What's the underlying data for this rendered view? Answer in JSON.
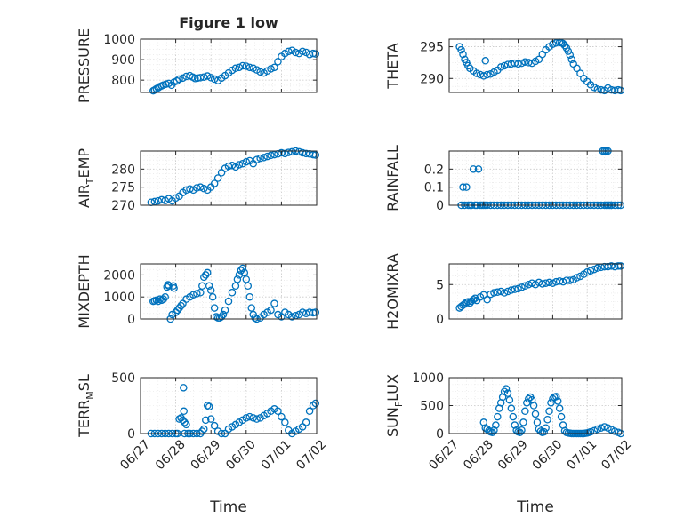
{
  "figure": {
    "title": "Figure 1 low",
    "xlabel": "Time"
  },
  "chart_data": [
    {
      "type": "scatter",
      "title": "Figure 1 low",
      "ylabel": "PRESSURE",
      "xlim": [
        0,
        5
      ],
      "ylim": [
        740,
        1000
      ],
      "yticks": [
        800,
        900,
        1000
      ],
      "xticks": [],
      "show_xlabel": false,
      "color": "#0072BD",
      "x": [
        0.36,
        0.4,
        0.45,
        0.5,
        0.55,
        0.6,
        0.65,
        0.72,
        0.8,
        0.88,
        0.95,
        1.03,
        1.1,
        1.2,
        1.3,
        1.4,
        1.48,
        1.55,
        1.62,
        1.7,
        1.8,
        1.9,
        2.0,
        2.1,
        2.2,
        2.3,
        2.4,
        2.5,
        2.6,
        2.7,
        2.8,
        2.9,
        3.0,
        3.1,
        3.2,
        3.3,
        3.4,
        3.5,
        3.6,
        3.7,
        3.8,
        3.9,
        4.0,
        4.1,
        4.2,
        4.3,
        4.4,
        4.5,
        4.6,
        4.7,
        4.8,
        4.9,
        4.97
      ],
      "y": [
        748,
        752,
        758,
        762,
        768,
        772,
        776,
        780,
        784,
        775,
        790,
        796,
        805,
        810,
        818,
        822,
        815,
        808,
        810,
        812,
        815,
        820,
        812,
        805,
        798,
        810,
        822,
        835,
        848,
        858,
        862,
        870,
        868,
        862,
        858,
        850,
        840,
        835,
        845,
        855,
        862,
        890,
        915,
        930,
        940,
        945,
        935,
        930,
        940,
        935,
        925,
        930,
        928
      ]
    },
    {
      "type": "scatter",
      "ylabel": "THETA",
      "xlim": [
        0,
        5
      ],
      "ylim": [
        287.8,
        296.2
      ],
      "yticks": [
        290,
        295
      ],
      "xticks": [],
      "show_xlabel": false,
      "color": "#0072BD",
      "x": [
        0.3,
        0.35,
        0.4,
        0.45,
        0.5,
        0.55,
        0.6,
        0.7,
        0.8,
        0.9,
        1.0,
        1.05,
        1.1,
        1.2,
        1.3,
        1.4,
        1.5,
        1.6,
        1.7,
        1.8,
        1.9,
        2.0,
        2.1,
        2.2,
        2.3,
        2.4,
        2.5,
        2.6,
        2.7,
        2.8,
        2.9,
        3.0,
        3.1,
        3.2,
        3.25,
        3.3,
        3.35,
        3.4,
        3.45,
        3.5,
        3.55,
        3.6,
        3.7,
        3.8,
        3.9,
        4.0,
        4.1,
        4.2,
        4.3,
        4.4,
        4.5,
        4.6,
        4.7,
        4.8,
        4.9,
        4.97
      ],
      "y": [
        295,
        294.5,
        293.8,
        293,
        292.5,
        292,
        291.6,
        291.2,
        290.8,
        290.6,
        290.4,
        292.8,
        290.6,
        290.7,
        291,
        291.3,
        291.8,
        292,
        292.2,
        292.3,
        292.4,
        292.3,
        292.4,
        292.6,
        292.5,
        292.4,
        292.7,
        293,
        293.8,
        294.5,
        295,
        295.4,
        295.6,
        295.7,
        295.6,
        295.5,
        295.2,
        294.8,
        294.3,
        293.7,
        293,
        292.3,
        291.6,
        290.8,
        290,
        289.5,
        289,
        288.6,
        288.3,
        288.2,
        288.1,
        288.5,
        288.2,
        288.1,
        288.2,
        288.1
      ]
    },
    {
      "type": "scatter",
      "ylabel": "AIR_TEMP",
      "ylabel_base": "AIR",
      "ylabel_sub": "T",
      "ylabel_rest": "EMP",
      "xlim": [
        0,
        5
      ],
      "ylim": [
        270,
        285
      ],
      "yticks": [
        270,
        275,
        280
      ],
      "xticks": [],
      "show_xlabel": false,
      "color": "#0072BD",
      "x": [
        0.3,
        0.4,
        0.5,
        0.6,
        0.7,
        0.8,
        0.9,
        1.0,
        1.1,
        1.2,
        1.3,
        1.4,
        1.5,
        1.6,
        1.7,
        1.8,
        1.9,
        2.0,
        2.1,
        2.2,
        2.3,
        2.4,
        2.5,
        2.6,
        2.7,
        2.8,
        2.9,
        3.0,
        3.1,
        3.2,
        3.3,
        3.4,
        3.5,
        3.6,
        3.7,
        3.8,
        3.9,
        4.0,
        4.1,
        4.2,
        4.3,
        4.4,
        4.5,
        4.6,
        4.7,
        4.8,
        4.9,
        4.97
      ],
      "y": [
        270.8,
        271,
        271.2,
        271.5,
        271.3,
        271.8,
        271.2,
        272,
        272.5,
        273.5,
        274.2,
        274.5,
        274.2,
        274.8,
        275,
        274.6,
        274.2,
        275,
        276,
        277.5,
        279,
        280.2,
        280.8,
        281,
        280.6,
        281.2,
        281.5,
        282,
        282.3,
        281.5,
        282.6,
        283,
        283.2,
        283.5,
        283.8,
        284,
        284.2,
        284.5,
        284.3,
        284.6,
        284.8,
        285,
        284.8,
        284.5,
        284.3,
        284.2,
        284,
        283.9
      ]
    },
    {
      "type": "scatter",
      "ylabel": "RAINFALL",
      "xlim": [
        0,
        5
      ],
      "ylim": [
        0,
        0.3
      ],
      "yticks": [
        0,
        0.1,
        0.2
      ],
      "xticks": [],
      "show_xlabel": false,
      "color": "#0072BD",
      "x": [
        0.35,
        0.4,
        0.45,
        0.5,
        0.55,
        0.6,
        0.65,
        0.7,
        0.75,
        0.8,
        0.85,
        0.9,
        0.95,
        1.0,
        1.05,
        1.1,
        1.2,
        1.3,
        1.4,
        1.5,
        1.6,
        1.7,
        1.8,
        1.9,
        2.0,
        2.1,
        2.2,
        2.3,
        2.4,
        2.5,
        2.6,
        2.7,
        2.8,
        2.9,
        3.0,
        3.1,
        3.2,
        3.3,
        3.4,
        3.5,
        3.6,
        3.7,
        3.8,
        3.9,
        4.0,
        4.1,
        4.2,
        4.3,
        4.4,
        4.5,
        4.6,
        4.7,
        4.8,
        4.9,
        4.97,
        4.45,
        4.5,
        4.55,
        4.6,
        4.65,
        4.7,
        4.55,
        4.6
      ],
      "y": [
        0,
        0.1,
        0,
        0.1,
        0,
        0,
        0,
        0.2,
        0,
        0,
        0.2,
        0,
        0,
        0,
        0,
        0,
        0,
        0,
        0,
        0,
        0,
        0,
        0,
        0,
        0,
        0,
        0,
        0,
        0,
        0,
        0,
        0,
        0,
        0,
        0,
        0,
        0,
        0,
        0,
        0,
        0,
        0,
        0,
        0,
        0,
        0,
        0,
        0,
        0,
        0,
        0,
        0,
        0,
        0,
        0,
        0.3,
        0.3,
        0.3,
        0.3,
        0,
        0,
        0,
        0
      ]
    },
    {
      "type": "scatter",
      "ylabel": "MIXDEPTH",
      "xlim": [
        0,
        5
      ],
      "ylim": [
        0,
        2500
      ],
      "yticks": [
        0,
        1000,
        2000
      ],
      "xticks": [],
      "show_xlabel": false,
      "color": "#0072BD",
      "x": [
        0.36,
        0.4,
        0.45,
        0.5,
        0.55,
        0.6,
        0.65,
        0.7,
        0.75,
        0.78,
        0.8,
        0.85,
        0.9,
        0.93,
        0.95,
        1.0,
        1.05,
        1.1,
        1.15,
        1.2,
        1.3,
        1.4,
        1.5,
        1.6,
        1.7,
        1.75,
        1.8,
        1.85,
        1.9,
        1.95,
        2.0,
        2.05,
        2.1,
        2.15,
        2.2,
        2.25,
        2.3,
        2.35,
        2.4,
        2.5,
        2.6,
        2.7,
        2.75,
        2.8,
        2.85,
        2.9,
        2.95,
        3.0,
        3.05,
        3.1,
        3.15,
        3.2,
        3.25,
        3.3,
        3.4,
        3.5,
        3.6,
        3.7,
        3.8,
        3.9,
        4.0,
        4.1,
        4.2,
        4.3,
        4.4,
        4.5,
        4.6,
        4.7,
        4.8,
        4.9,
        4.97
      ],
      "y": [
        800,
        820,
        850,
        800,
        900,
        850,
        900,
        1000,
        1450,
        1550,
        1500,
        0,
        200,
        1500,
        1400,
        300,
        400,
        500,
        600,
        700,
        900,
        1000,
        1100,
        1150,
        1200,
        1500,
        1900,
        2000,
        2100,
        1500,
        1300,
        1000,
        500,
        100,
        50,
        50,
        100,
        200,
        400,
        800,
        1200,
        1500,
        1800,
        2000,
        2200,
        2300,
        2100,
        1800,
        1500,
        1000,
        500,
        200,
        50,
        0,
        50,
        200,
        300,
        400,
        700,
        200,
        100,
        300,
        200,
        100,
        150,
        200,
        300,
        250,
        300,
        280,
        300
      ]
    },
    {
      "type": "scatter",
      "ylabel": "H2OMIXRA",
      "xlim": [
        0,
        5
      ],
      "ylim": [
        0,
        8
      ],
      "yticks": [
        0,
        5
      ],
      "xticks": [],
      "show_xlabel": false,
      "color": "#0072BD",
      "x": [
        0.3,
        0.35,
        0.4,
        0.45,
        0.5,
        0.55,
        0.6,
        0.65,
        0.7,
        0.75,
        0.8,
        0.9,
        1.0,
        1.1,
        1.2,
        1.3,
        1.4,
        1.5,
        1.6,
        1.7,
        1.8,
        1.9,
        2.0,
        2.1,
        2.2,
        2.3,
        2.4,
        2.5,
        2.6,
        2.7,
        2.8,
        2.9,
        3.0,
        3.1,
        3.2,
        3.3,
        3.4,
        3.5,
        3.6,
        3.7,
        3.8,
        3.9,
        4.0,
        4.1,
        4.2,
        4.3,
        4.4,
        4.5,
        4.6,
        4.7,
        4.8,
        4.9,
        4.97
      ],
      "y": [
        1.6,
        1.8,
        2.0,
        2.2,
        2.4,
        2.5,
        2.3,
        2.6,
        2.8,
        3.0,
        2.7,
        3.2,
        3.5,
        2.8,
        3.6,
        3.8,
        3.9,
        4.0,
        3.8,
        4.0,
        4.2,
        4.3,
        4.4,
        4.6,
        4.8,
        5.0,
        5.2,
        5.0,
        5.3,
        5.1,
        5.2,
        5.3,
        5.2,
        5.4,
        5.5,
        5.4,
        5.6,
        5.6,
        5.7,
        6.0,
        6.2,
        6.5,
        6.8,
        7.0,
        7.2,
        7.4,
        7.5,
        7.6,
        7.6,
        7.7,
        7.6,
        7.7,
        7.7
      ]
    },
    {
      "type": "scatter",
      "ylabel": "TERR_MSL",
      "ylabel_base": "TERR",
      "ylabel_sub": "M",
      "ylabel_rest": "SL",
      "xlim": [
        0,
        5
      ],
      "ylim": [
        0,
        500
      ],
      "yticks": [
        0,
        500
      ],
      "xticks": [
        "06/27",
        "06/28",
        "06/29",
        "06/30",
        "07/01",
        "07/02"
      ],
      "show_xlabel": true,
      "color": "#0072BD",
      "x": [
        0.3,
        0.4,
        0.5,
        0.6,
        0.7,
        0.8,
        0.9,
        1.0,
        1.05,
        1.1,
        1.15,
        1.2,
        1.25,
        1.3,
        1.35,
        1.4,
        1.5,
        1.6,
        1.7,
        1.75,
        1.8,
        1.85,
        1.9,
        1.95,
        2.0,
        2.1,
        2.2,
        2.3,
        2.4,
        2.5,
        2.6,
        2.7,
        2.8,
        2.9,
        3.0,
        3.1,
        3.2,
        3.3,
        3.4,
        3.5,
        3.6,
        3.7,
        3.8,
        3.9,
        4.0,
        4.1,
        4.2,
        4.3,
        4.4,
        4.5,
        4.6,
        4.7,
        4.8,
        4.9,
        4.97,
        1.22,
        1.23,
        1.25
      ],
      "y": [
        0,
        0,
        0,
        0,
        0,
        0,
        0,
        0,
        0,
        130,
        140,
        120,
        100,
        80,
        0,
        0,
        0,
        0,
        0,
        20,
        40,
        120,
        250,
        240,
        130,
        70,
        20,
        0,
        0,
        40,
        60,
        80,
        100,
        120,
        140,
        150,
        140,
        130,
        140,
        160,
        180,
        200,
        220,
        200,
        150,
        100,
        30,
        0,
        20,
        40,
        60,
        100,
        200,
        250,
        270,
        410,
        200,
        0
      ]
    },
    {
      "type": "scatter",
      "ylabel": "SUN_FLUX",
      "ylabel_base": "SUN",
      "ylabel_sub": "F",
      "ylabel_rest": "LUX",
      "xlim": [
        0,
        5
      ],
      "ylim": [
        0,
        1000
      ],
      "yticks": [
        0,
        500,
        1000
      ],
      "xticks": [
        "06/27",
        "06/28",
        "06/29",
        "06/30",
        "07/01",
        "07/02"
      ],
      "show_xlabel": true,
      "color": "#0072BD",
      "x": [
        1.0,
        1.05,
        1.1,
        1.15,
        1.2,
        1.25,
        1.3,
        1.35,
        1.4,
        1.45,
        1.5,
        1.55,
        1.6,
        1.65,
        1.7,
        1.75,
        1.8,
        1.85,
        1.9,
        1.95,
        2.0,
        2.05,
        2.1,
        2.15,
        2.2,
        2.25,
        2.3,
        2.35,
        2.4,
        2.45,
        2.5,
        2.55,
        2.6,
        2.65,
        2.7,
        2.75,
        2.8,
        2.85,
        2.9,
        2.95,
        3.0,
        3.05,
        3.1,
        3.15,
        3.2,
        3.25,
        3.3,
        3.35,
        3.4,
        3.45,
        3.5,
        3.55,
        3.6,
        3.65,
        3.7,
        3.75,
        3.8,
        3.85,
        3.9,
        3.95,
        4.0,
        4.05,
        4.1,
        4.2,
        4.3,
        4.4,
        4.5,
        4.6,
        4.7,
        4.8,
        4.9,
        4.97
      ],
      "y": [
        200,
        100,
        80,
        50,
        30,
        20,
        60,
        150,
        300,
        450,
        550,
        650,
        750,
        800,
        720,
        600,
        450,
        300,
        150,
        60,
        30,
        20,
        60,
        200,
        400,
        550,
        620,
        650,
        600,
        500,
        350,
        200,
        80,
        40,
        20,
        30,
        100,
        250,
        400,
        550,
        620,
        650,
        660,
        580,
        450,
        300,
        150,
        50,
        20,
        10,
        5,
        0,
        0,
        0,
        0,
        0,
        0,
        0,
        0,
        5,
        10,
        20,
        30,
        50,
        80,
        100,
        120,
        100,
        70,
        40,
        20,
        0
      ]
    }
  ]
}
